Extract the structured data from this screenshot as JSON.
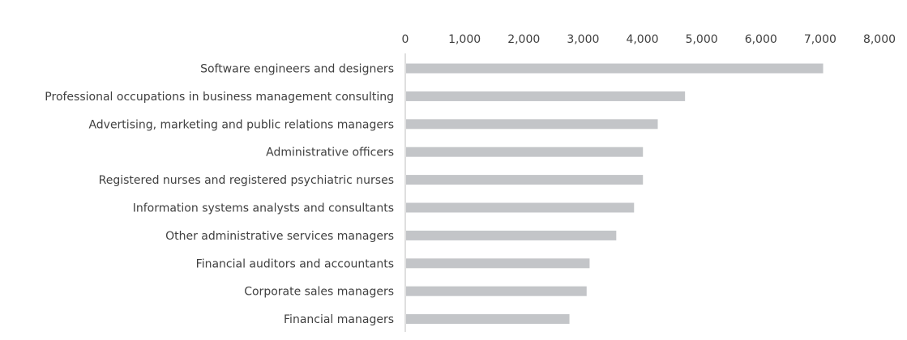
{
  "chart_data": {
    "type": "bar",
    "orientation": "horizontal",
    "categories": [
      "Software engineers and designers",
      "Professional occupations in business management consulting",
      "Advertising, marketing and public relations managers",
      "Administrative officers",
      "Registered nurses and registered psychiatric nurses",
      "Information systems analysts and consultants",
      "Other administrative services managers",
      "Financial auditors and accountants",
      "Corporate sales managers",
      "Financial managers"
    ],
    "values": [
      7050,
      4720,
      4260,
      4010,
      4010,
      3860,
      3560,
      3110,
      3060,
      2770
    ],
    "xlim": [
      0,
      8000
    ],
    "x_ticks": [
      "0",
      "1,000",
      "2,000",
      "3,000",
      "4,000",
      "5,000",
      "6,000",
      "7,000",
      "8,000"
    ],
    "x_tick_values": [
      0,
      1000,
      2000,
      3000,
      4000,
      5000,
      6000,
      7000,
      8000
    ],
    "axis_position": "top",
    "grid": false,
    "legend": "none",
    "bar_color": "#c3c5c8",
    "axis_color": "#bfbfbf",
    "text_color": "#404040"
  }
}
